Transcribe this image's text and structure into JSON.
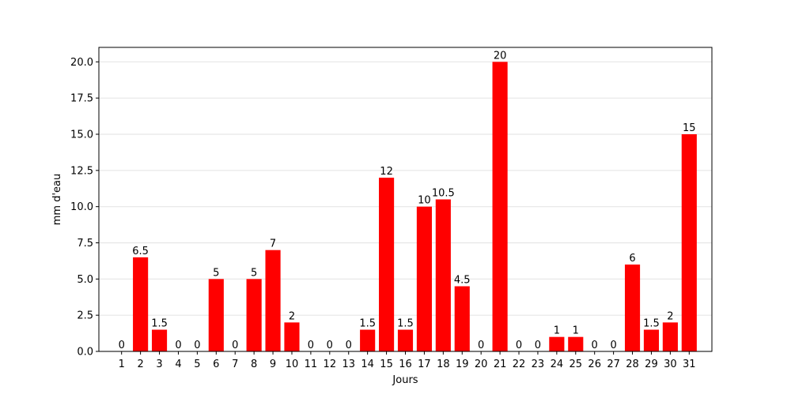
{
  "chart_data": {
    "type": "bar",
    "title": "",
    "xlabel": "Jours",
    "ylabel": "mm d'eau",
    "categories": [
      "1",
      "2",
      "3",
      "4",
      "5",
      "6",
      "7",
      "8",
      "9",
      "10",
      "11",
      "12",
      "13",
      "14",
      "15",
      "16",
      "17",
      "18",
      "19",
      "20",
      "21",
      "22",
      "23",
      "24",
      "25",
      "26",
      "27",
      "28",
      "29",
      "30",
      "31"
    ],
    "values": [
      0,
      6.5,
      1.5,
      0,
      0,
      5,
      0,
      5,
      7,
      2,
      0,
      0,
      0,
      1.5,
      12,
      1.5,
      10,
      10.5,
      4.5,
      0,
      20,
      0,
      0,
      1,
      1,
      0,
      0,
      6,
      1.5,
      2,
      15
    ],
    "data_labels": [
      "0",
      "6.5",
      "1.5",
      "0",
      "0",
      "5",
      "0",
      "5",
      "7",
      "2",
      "0",
      "0",
      "0",
      "1.5",
      "12",
      "1.5",
      "10",
      "10.5",
      "4.5",
      "0",
      "20",
      "0",
      "0",
      "1",
      "1",
      "0",
      "0",
      "6",
      "1.5",
      "2",
      "15"
    ],
    "ylim": [
      0,
      21
    ],
    "yticks": [
      0,
      2.5,
      5,
      7.5,
      10,
      12.5,
      15,
      17.5,
      20
    ],
    "ytick_labels": [
      "0.0",
      "2.5",
      "5.0",
      "7.5",
      "10.0",
      "12.5",
      "15.0",
      "17.5",
      "20.0"
    ],
    "grid": "horizontal",
    "bar_color": "#ff0000",
    "grid_color": "#e6e6e6"
  }
}
